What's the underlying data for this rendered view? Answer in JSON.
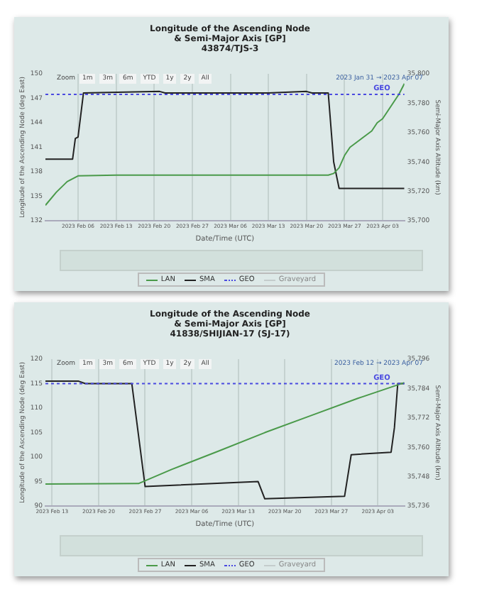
{
  "chart_data": [
    {
      "type": "line",
      "title": "Longitude of the Ascending Node\n& Semi-Major Axis [GP]",
      "subtitle": "43874/TJS-3",
      "xlabel": "Date/Time (UTC)",
      "ylabel": "Longitude of the Ascending Node (deg East)",
      "y2label": "Semi-Major Axis Altitude (km)",
      "annotations": [
        "Zoom",
        "1m",
        "3m",
        "6m",
        "YTD",
        "1y",
        "2y",
        "All",
        "2023 Jan 31 → 2023 Apr 07",
        "Graveyard"
      ],
      "xlim": [
        "2023-01-31",
        "2023-04-07"
      ],
      "xticks": [
        {
          "value": "2023-02-06",
          "label": "2023 Feb 06"
        },
        {
          "value": "2023-02-13",
          "label": "2023 Feb 13"
        },
        {
          "value": "2023-02-20",
          "label": "2023 Feb 20"
        },
        {
          "value": "2023-02-27",
          "label": "2023 Feb 27"
        },
        {
          "value": "2023-03-06",
          "label": "2023 Mar 06"
        },
        {
          "value": "2023-03-13",
          "label": "2023 Mar 13"
        },
        {
          "value": "2023-03-20",
          "label": "2023 Mar 20"
        },
        {
          "value": "2023-03-27",
          "label": "2023 Mar 27"
        },
        {
          "value": "2023-04-03",
          "label": "2023 Apr 03"
        }
      ],
      "ylim": [
        132,
        150
      ],
      "yticks": [
        132,
        135,
        138,
        141,
        144,
        147,
        150
      ],
      "y2lim": [
        35700,
        35800
      ],
      "y2ticks": [
        {
          "value": 35700,
          "label": "35,700"
        },
        {
          "value": 35720,
          "label": "35,720"
        },
        {
          "value": 35740,
          "label": "35,740"
        },
        {
          "value": 35760,
          "label": "35,760"
        },
        {
          "value": 35780,
          "label": "35,780"
        },
        {
          "value": 35800,
          "label": "35,800"
        }
      ],
      "grid": "x",
      "legend": "bottom",
      "marker": "none",
      "ref_lines": [
        {
          "axis": "y2",
          "value": 35786,
          "label": "GEO",
          "color": "#4a4ae0",
          "line_style": "dotted"
        }
      ],
      "series": [
        {
          "name": "LAN",
          "color": "#4a9a4a",
          "x": [
            "2023-01-31",
            "2023-02-02",
            "2023-02-04",
            "2023-02-06",
            "2023-02-13",
            "2023-03-24",
            "2023-03-25",
            "2023-03-26",
            "2023-03-27",
            "2023-03-28",
            "2023-03-29",
            "2023-03-30",
            "2023-03-31",
            "2023-04-01",
            "2023-04-02",
            "2023-04-03",
            "2023-04-04",
            "2023-04-05",
            "2023-04-06",
            "2023-04-07"
          ],
          "values": [
            133.9,
            135.5,
            136.8,
            137.5,
            137.6,
            137.6,
            137.8,
            138.5,
            140,
            141,
            141.5,
            142,
            142.5,
            143,
            144,
            144.5,
            145.5,
            146.5,
            147.5,
            148.8
          ]
        },
        {
          "name": "SMA",
          "color": "#222222",
          "axis": "y2",
          "x": [
            "2023-01-31",
            "2023-02-05",
            "2023-02-05T12:00",
            "2023-02-06",
            "2023-02-07",
            "2023-02-21",
            "2023-02-22",
            "2023-03-13",
            "2023-03-20",
            "2023-03-21",
            "2023-03-24",
            "2023-03-25",
            "2023-03-26",
            "2023-04-07"
          ],
          "values": [
            35742,
            35742,
            35756,
            35757,
            35787,
            35788,
            35787,
            35787,
            35788,
            35787,
            35787,
            35740,
            35722,
            35722
          ]
        }
      ]
    },
    {
      "type": "line",
      "title": "Longitude of the Ascending Node\n& Semi-Major Axis [GP]",
      "subtitle": "41838/SHIJIAN-17 (SJ-17)",
      "xlabel": "Date/Time (UTC)",
      "ylabel": "Longitude of the Ascending Node (deg East)",
      "y2label": "Semi-Major Axis Altitude (km)",
      "annotations": [
        "Zoom",
        "1m",
        "3m",
        "6m",
        "YTD",
        "1y",
        "2y",
        "All",
        "2023 Feb 12 → 2023 Apr 07",
        "Graveyard"
      ],
      "xlim": [
        "2023-02-12",
        "2023-04-07"
      ],
      "xticks": [
        {
          "value": "2023-02-13",
          "label": "2023 Feb 13"
        },
        {
          "value": "2023-02-20",
          "label": "2023 Feb 20"
        },
        {
          "value": "2023-02-27",
          "label": "2023 Feb 27"
        },
        {
          "value": "2023-03-06",
          "label": "2023 Mar 06"
        },
        {
          "value": "2023-03-13",
          "label": "2023 Mar 13"
        },
        {
          "value": "2023-03-20",
          "label": "2023 Mar 20"
        },
        {
          "value": "2023-03-27",
          "label": "2023 Mar 27"
        },
        {
          "value": "2023-04-03",
          "label": "2023 Apr 03"
        }
      ],
      "ylim": [
        90,
        120
      ],
      "yticks": [
        90,
        95,
        100,
        105,
        110,
        115,
        120
      ],
      "y2lim": [
        35736,
        35796
      ],
      "y2ticks": [
        {
          "value": 35736,
          "label": "35,736"
        },
        {
          "value": 35748,
          "label": "35,748"
        },
        {
          "value": 35760,
          "label": "35,760"
        },
        {
          "value": 35772,
          "label": "35,772"
        },
        {
          "value": 35784,
          "label": "35,784"
        },
        {
          "value": 35796,
          "label": "35,796"
        }
      ],
      "grid": "x",
      "legend": "bottom",
      "marker": "none",
      "ref_lines": [
        {
          "axis": "y2",
          "value": 35786,
          "label": "GEO",
          "color": "#4a4ae0",
          "line_style": "dotted"
        }
      ],
      "series": [
        {
          "name": "LAN",
          "color": "#4a9a4a",
          "x": [
            "2023-02-12",
            "2023-02-26",
            "2023-03-03",
            "2023-03-10",
            "2023-03-17",
            "2023-03-24",
            "2023-03-31",
            "2023-04-07"
          ],
          "values": [
            94.5,
            94.6,
            97.5,
            101.2,
            105,
            108.5,
            112,
            115.2
          ]
        },
        {
          "name": "SMA",
          "color": "#222222",
          "axis": "y2",
          "x": [
            "2023-02-12",
            "2023-02-17",
            "2023-02-18",
            "2023-02-25",
            "2023-02-27",
            "2023-03-16",
            "2023-03-17",
            "2023-03-29",
            "2023-03-30",
            "2023-04-05",
            "2023-04-05T12:00",
            "2023-04-06",
            "2023-04-07"
          ],
          "values": [
            35787,
            35787,
            35786,
            35786,
            35744,
            35746,
            35739,
            35740,
            35757,
            35758,
            35768,
            35786,
            35786
          ]
        }
      ]
    }
  ]
}
